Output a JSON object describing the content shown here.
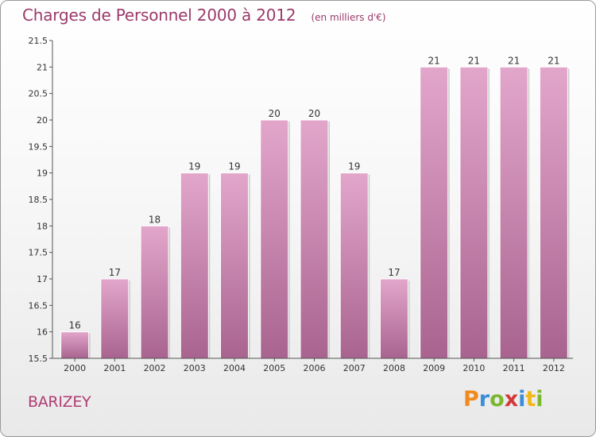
{
  "header": {
    "title": "Charges de Personnel 2000 à 2012",
    "subtitle": "(en milliers d'€)"
  },
  "footer": {
    "commune": "BARIZEY",
    "logo_letters": [
      "P",
      "r",
      "o",
      "x",
      "i",
      "t",
      "i"
    ]
  },
  "colors": {
    "title": "#9b3a6b",
    "bar_light": "#e3a6cb",
    "bar_dark": "#a8648f",
    "logo": [
      "#f08a1c",
      "#3a8fd8",
      "#7cb82f",
      "#d23a3a",
      "#3a8fd8",
      "#f0b81c",
      "#7cb82f"
    ]
  },
  "chart_data": {
    "type": "bar",
    "title": "Charges de Personnel 2000 à 2012",
    "subtitle": "(en milliers d'€)",
    "categories": [
      "2000",
      "2001",
      "2002",
      "2003",
      "2004",
      "2005",
      "2006",
      "2007",
      "2008",
      "2009",
      "2010",
      "2011",
      "2012"
    ],
    "values": [
      16,
      17,
      18,
      19,
      19,
      20,
      20,
      19,
      17,
      21,
      21,
      21,
      21
    ],
    "labels": [
      "16",
      "17",
      "18",
      "19",
      "19",
      "20",
      "20",
      "19",
      "17",
      "21",
      "21",
      "21",
      "21"
    ],
    "ylim": [
      15.5,
      21.5
    ],
    "yticks": [
      "15.5",
      "16",
      "16.5",
      "17",
      "17.5",
      "18",
      "18.5",
      "19",
      "19.5",
      "20",
      "20.5",
      "21",
      "21.5"
    ],
    "grid": false,
    "legend": "none"
  }
}
